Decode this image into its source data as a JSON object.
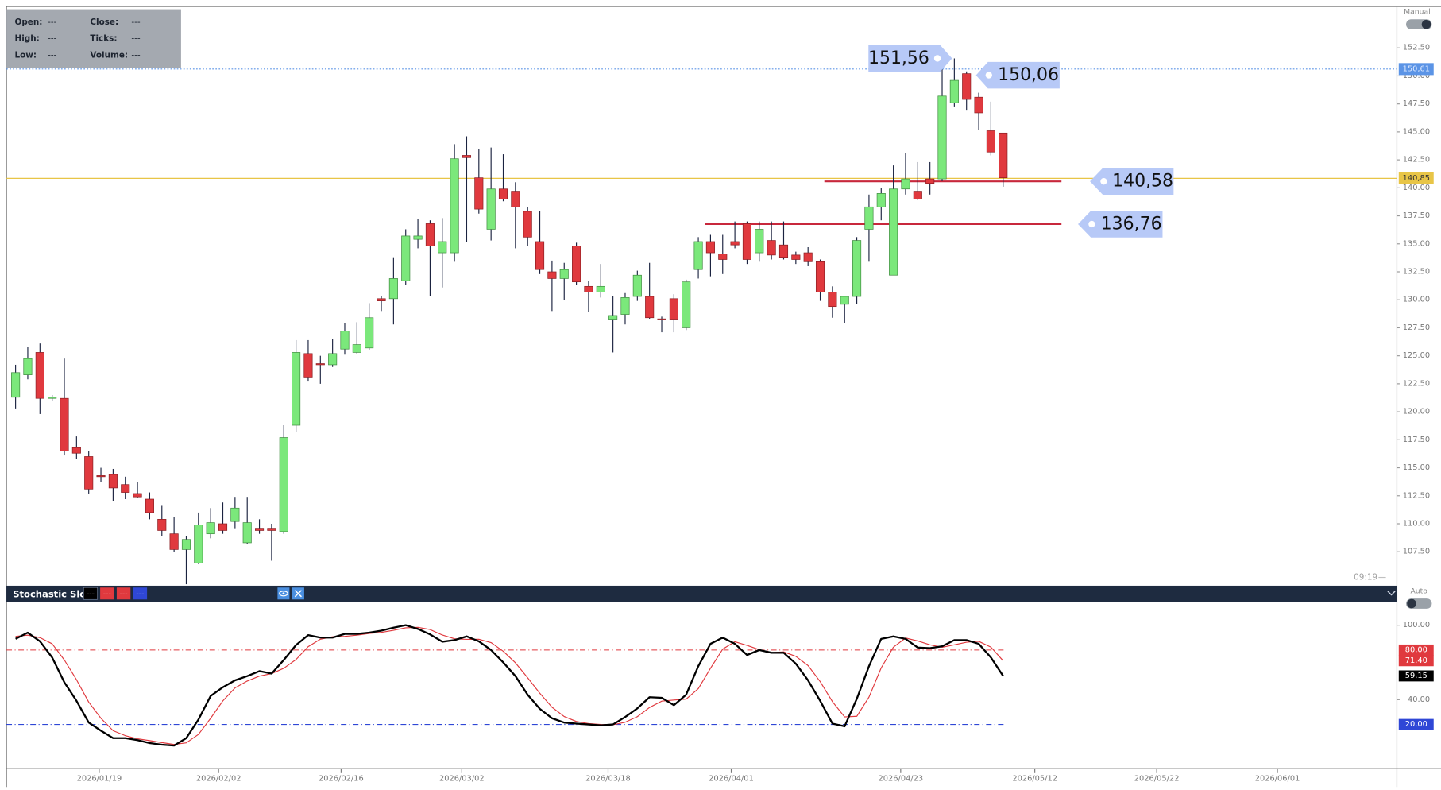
{
  "info_panel": [
    [
      "Open:",
      "---"
    ],
    [
      "Close:",
      "---"
    ],
    [
      "High:",
      "---"
    ],
    [
      "Ticks:",
      "---"
    ],
    [
      "Low:",
      "---"
    ],
    [
      "Volume:",
      "---"
    ]
  ],
  "toggles": {
    "manual": "Manual",
    "auto": "Auto"
  },
  "session_time": "09:19",
  "indicator": {
    "title": "Stochastic Slow",
    "params": [
      "---",
      "---",
      "---",
      "---"
    ]
  },
  "chart_data": [
    {
      "type": "candlestick",
      "open": [
        121.3,
        123.3,
        125.3,
        121.2,
        121.2,
        116.8,
        116.0,
        114.3,
        114.4,
        113.5,
        112.7,
        112.2,
        110.4,
        109.1,
        107.7,
        106.5,
        109.1,
        110.0,
        110.2,
        108.3,
        109.6,
        109.6,
        109.3,
        118.8,
        125.2,
        124.3,
        124.2,
        125.6,
        125.3,
        125.7,
        130.1,
        130.1,
        131.7,
        135.4,
        136.8,
        134.2,
        134.2,
        142.9,
        140.9,
        136.3,
        139.9,
        139.7,
        137.9,
        135.2,
        132.5,
        131.9,
        134.8,
        131.2,
        130.7,
        128.2,
        128.7,
        130.3,
        130.3,
        128.3,
        130.1,
        127.5,
        132.7,
        135.2,
        134.1,
        135.2,
        136.8,
        134.2,
        135.3,
        134.9,
        134.0,
        134.2,
        133.4,
        130.7,
        129.6,
        130.3,
        136.3,
        138.3,
        132.2,
        139.9,
        139.7,
        140.8,
        140.8,
        147.6,
        150.2,
        148.1,
        145.1,
        144.9
      ],
      "high": [
        124.2,
        125.8,
        126.1,
        121.5,
        124.75,
        117.8,
        116.5,
        115.0,
        114.9,
        114.2,
        113.7,
        112.8,
        111.6,
        110.6,
        108.9,
        111.0,
        111.4,
        111.9,
        112.4,
        112.4,
        110.4,
        110.0,
        118.8,
        126.4,
        126.4,
        125.0,
        126.5,
        127.9,
        128.0,
        129.7,
        130.3,
        133.8,
        136.3,
        137.2,
        137.1,
        137.3,
        143.9,
        144.6,
        143.5,
        143.6,
        143.0,
        140.5,
        138.3,
        137.9,
        133.5,
        133.3,
        135.1,
        131.7,
        133.2,
        130.3,
        130.6,
        132.6,
        133.3,
        128.5,
        130.5,
        131.8,
        135.6,
        135.8,
        135.8,
        137.0,
        137.0,
        137.0,
        137.0,
        137.0,
        134.3,
        134.7,
        133.6,
        131.2,
        130.3,
        135.6,
        139.4,
        140.0,
        142.0,
        143.1,
        142.3,
        142.3,
        150.6,
        151.56,
        150.4,
        148.5,
        147.7,
        144.9
      ],
      "low": [
        120.3,
        122.9,
        119.8,
        121.0,
        116.1,
        115.8,
        112.7,
        113.7,
        112.0,
        112.2,
        112.3,
        110.4,
        108.9,
        107.5,
        104.6,
        106.4,
        108.7,
        109.1,
        109.6,
        108.2,
        109.1,
        106.7,
        109.1,
        118.2,
        122.7,
        122.5,
        124.0,
        125.1,
        125.2,
        125.5,
        129.0,
        127.8,
        131.3,
        134.6,
        130.3,
        131.1,
        133.4,
        135.2,
        137.7,
        135.3,
        138.8,
        134.6,
        134.8,
        132.3,
        129.0,
        130.0,
        131.3,
        128.9,
        130.2,
        125.3,
        127.8,
        129.9,
        128.3,
        127.1,
        127.1,
        127.3,
        131.9,
        132.1,
        132.3,
        134.6,
        133.2,
        133.4,
        133.6,
        133.6,
        133.2,
        133.0,
        129.9,
        128.4,
        127.9,
        129.6,
        133.4,
        137.1,
        132.2,
        139.4,
        138.9,
        139.4,
        140.6,
        147.2,
        146.9,
        145.2,
        142.9,
        140.1
      ],
      "close": [
        123.5,
        124.75,
        121.2,
        121.3,
        116.5,
        116.3,
        113.1,
        114.2,
        113.2,
        112.8,
        112.4,
        111.0,
        109.4,
        107.7,
        108.6,
        109.9,
        110.1,
        109.4,
        111.4,
        110.1,
        109.4,
        109.4,
        117.7,
        125.3,
        123.1,
        124.2,
        125.2,
        127.2,
        126.0,
        128.4,
        129.9,
        131.9,
        135.7,
        135.7,
        134.8,
        135.2,
        142.6,
        142.7,
        138.1,
        139.9,
        139.0,
        138.3,
        135.6,
        132.7,
        131.9,
        132.7,
        131.6,
        130.7,
        131.2,
        128.6,
        130.2,
        132.2,
        128.4,
        128.2,
        128.2,
        131.6,
        135.2,
        134.2,
        133.6,
        134.9,
        133.6,
        136.3,
        134.0,
        133.8,
        133.6,
        133.4,
        130.7,
        129.4,
        130.3,
        135.3,
        138.3,
        139.5,
        139.9,
        140.8,
        139.0,
        140.4,
        148.2,
        149.6,
        147.9,
        146.7,
        143.2,
        140.9
      ],
      "up_color": "#7be87b",
      "down_color": "#e0393e",
      "wick_color": "#1b2340",
      "xlim": [
        -0.75,
        113.3
      ],
      "xticks": [
        {
          "value": 6.86,
          "label": "2026/01/19"
        },
        {
          "value": 16.65,
          "label": "2026/02/02"
        },
        {
          "value": 26.7,
          "label": "2026/02/16"
        },
        {
          "value": 36.6,
          "label": "2026/03/02"
        },
        {
          "value": 48.6,
          "label": "2026/03/18"
        },
        {
          "value": 58.7,
          "label": "2026/04/01"
        },
        {
          "value": 72.6,
          "label": "2026/04/23"
        },
        {
          "value": 83.6,
          "label": "2026/05/12"
        },
        {
          "value": 93.6,
          "label": "2026/05/22"
        },
        {
          "value": 103.5,
          "label": "2026/06/01"
        }
      ],
      "ylim": [
        104.55,
        156.2
      ],
      "yticks": [
        {
          "value": 107.5,
          "label": "107.50"
        },
        {
          "value": 110,
          "label": "110.00"
        },
        {
          "value": 112.5,
          "label": "112.50"
        },
        {
          "value": 115,
          "label": "115.00"
        },
        {
          "value": 117.5,
          "label": "117.50"
        },
        {
          "value": 120,
          "label": "120.00"
        },
        {
          "value": 122.5,
          "label": "122.50"
        },
        {
          "value": 125,
          "label": "125.00"
        },
        {
          "value": 127.5,
          "label": "127.50"
        },
        {
          "value": 130,
          "label": "130.00"
        },
        {
          "value": 132.5,
          "label": "132.50"
        },
        {
          "value": 135,
          "label": "135.00"
        },
        {
          "value": 137.5,
          "label": "137.50"
        },
        {
          "value": 140,
          "label": "140.00"
        },
        {
          "value": 142.5,
          "label": "142.50"
        },
        {
          "value": 145,
          "label": "145.00"
        },
        {
          "value": 147.5,
          "label": "147.50"
        },
        {
          "value": 150,
          "label": "150.00"
        },
        {
          "value": 152.5,
          "label": "152.50"
        }
      ],
      "price_lines": [
        {
          "value": 150.61,
          "label": "150,61",
          "color": "#5b94e6",
          "style": "dotted"
        },
        {
          "value": 140.85,
          "label": "140,85",
          "color": "#e8c547",
          "style": "solid"
        }
      ],
      "annotations": [
        {
          "value": 151.56,
          "label": "151,56"
        },
        {
          "value": 150.06,
          "label": "150,06"
        },
        {
          "value": 140.58,
          "label": "140,58"
        },
        {
          "value": 136.76,
          "label": "136,76"
        }
      ],
      "annotation_color": "#b7c9f7",
      "level_line_color": "#c8283c"
    },
    {
      "type": "line",
      "ylim": [
        -15.6,
        118.5
      ],
      "yticks": [
        {
          "value": 100,
          "label": "100.00"
        },
        {
          "value": 40,
          "label": "40.00"
        }
      ],
      "levels": [
        {
          "value": 80,
          "label": "80,00",
          "color": "#e0393e"
        },
        {
          "value": 20,
          "label": "20,00",
          "color": "#2f47d6"
        }
      ],
      "series": [
        {
          "color": "#e0393e",
          "values": [
            91,
            92,
            90,
            85,
            72,
            56,
            38,
            25,
            15,
            11,
            8.5,
            7,
            5.4,
            3.9,
            5.2,
            12,
            25,
            39,
            49.5,
            55,
            59,
            61,
            65.3,
            72.3,
            82.7,
            88.7,
            90.7,
            91,
            92,
            93.3,
            94.2,
            95.9,
            97.9,
            98.3,
            96.5,
            92.1,
            89.1,
            88.6,
            88.7,
            86,
            79,
            69.7,
            57.7,
            45.2,
            33.9,
            26.4,
            22.4,
            20.7,
            20,
            19.8,
            21.8,
            26.3,
            33.7,
            38.8,
            39.7,
            40.4,
            48.9,
            65.3,
            80.7,
            86.7,
            83.7,
            80.3,
            77.9,
            78.5,
            74.9,
            67.5,
            54.5,
            38.4,
            26.1,
            26.6,
            42.1,
            65.6,
            82.3,
            89.7,
            87.3,
            84.2,
            82.2,
            84.2,
            86.3,
            87,
            82.3,
            71.4
          ],
          "value_labels": [
            null,
            null,
            null,
            null,
            null,
            null,
            null,
            null,
            null,
            null,
            null,
            null,
            null,
            null,
            null,
            null,
            null,
            null,
            null,
            null,
            null,
            null,
            null,
            null,
            null,
            null,
            null,
            null,
            null,
            null,
            null,
            null,
            null,
            null,
            null,
            null,
            null,
            null,
            null,
            null,
            null,
            null,
            null,
            null,
            null,
            null,
            null,
            null,
            null,
            null,
            null,
            null,
            null,
            null,
            null,
            null,
            null,
            null,
            null,
            null,
            null,
            null,
            null,
            null,
            null,
            null,
            null,
            null,
            null,
            null,
            null,
            null,
            null,
            null,
            null,
            null,
            null,
            null,
            null,
            null,
            null,
            "71,40"
          ]
        },
        {
          "color": "#000000",
          "values": [
            89,
            94,
            87,
            74,
            54,
            39,
            21.5,
            15,
            9,
            9,
            7.4,
            5,
            3.7,
            3,
            9,
            24,
            43,
            50,
            55.6,
            59,
            63,
            61,
            72,
            84,
            92,
            90,
            90,
            93,
            93,
            94,
            95.6,
            98,
            100,
            97,
            92.6,
            86.7,
            88,
            91,
            87,
            80,
            70,
            59,
            44,
            32.6,
            25,
            21.5,
            20.7,
            20,
            19.3,
            20,
            26,
            33,
            42,
            41.5,
            35.6,
            44,
            67,
            85,
            90,
            85,
            76,
            80,
            77.8,
            77.8,
            69,
            55.6,
            39,
            20.7,
            18.5,
            40.7,
            67,
            89,
            91,
            89,
            82,
            81.5,
            83,
            88,
            88,
            85,
            74,
            59.15
          ],
          "value_labels": [
            null,
            null,
            null,
            null,
            null,
            null,
            null,
            null,
            null,
            null,
            null,
            null,
            null,
            null,
            null,
            null,
            null,
            null,
            null,
            null,
            null,
            null,
            null,
            null,
            null,
            null,
            null,
            null,
            null,
            null,
            null,
            null,
            null,
            null,
            null,
            null,
            null,
            null,
            null,
            null,
            null,
            null,
            null,
            null,
            null,
            null,
            null,
            null,
            null,
            null,
            null,
            null,
            null,
            null,
            null,
            null,
            null,
            null,
            null,
            null,
            null,
            null,
            null,
            null,
            null,
            null,
            null,
            null,
            null,
            null,
            null,
            null,
            null,
            null,
            null,
            null,
            null,
            null,
            null,
            null,
            null,
            "59,15"
          ]
        }
      ]
    }
  ]
}
